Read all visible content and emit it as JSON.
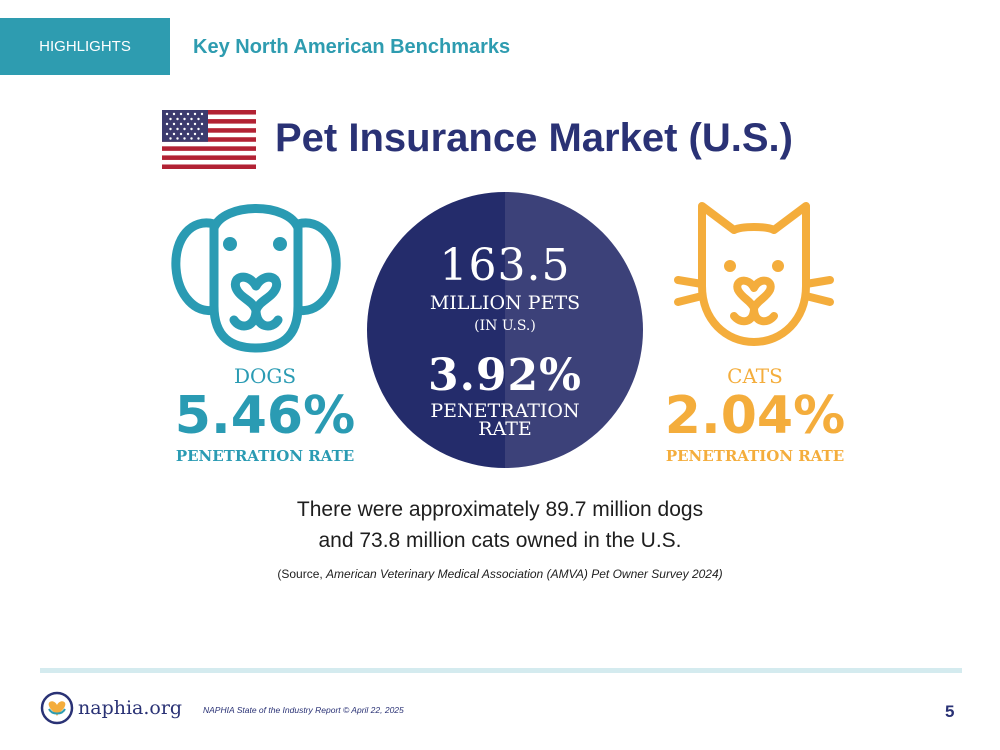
{
  "header": {
    "tag_label": "HIGHLIGHTS",
    "section_title": "Key North American Benchmarks"
  },
  "title": "Pet Insurance Market (U.S.)",
  "dogs": {
    "label": "DOGS",
    "percent": "5.46%",
    "caption": "PENETRATION RATE"
  },
  "cats": {
    "label": "CATS",
    "percent": "2.04%",
    "caption": "PENETRATION RATE"
  },
  "center": {
    "pets_number": "163.5",
    "pets_label": "MILLION PETS",
    "pets_sublabel": "(IN U.S.)",
    "rate": "3.92%",
    "rate_label_1": "PENETRATION",
    "rate_label_2": "RATE"
  },
  "description": {
    "line1": "There were approximately 89.7 million dogs",
    "line2": "and 73.8 million cats owned in the U.S."
  },
  "source": {
    "prefix": "(Source, ",
    "italic": "American Veterinary Medical Association (AMVA) Pet Owner Survey 2024)"
  },
  "footer": {
    "logo_text": "naphia.org",
    "note": "NAPHIA State of the Industry Report © April 22, 2025",
    "page_number": "5"
  },
  "colors": {
    "teal": "#2e9cb0",
    "navy": "#2a3275",
    "orange": "#f4ad3c",
    "circle_dark": "#242c6b",
    "circle_light": "#3c4179"
  }
}
